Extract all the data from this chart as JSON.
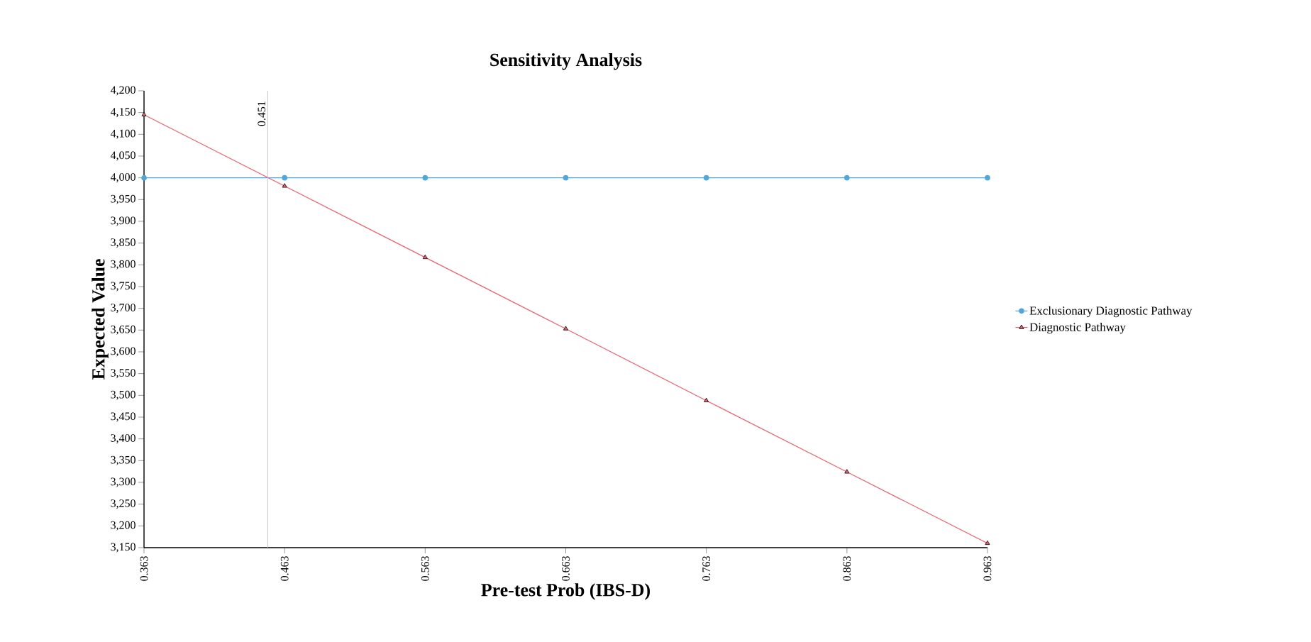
{
  "chart_data": {
    "type": "line",
    "title": "Sensitivity Analysis",
    "xlabel": "Pre-test Prob (IBS-D)",
    "ylabel": "Expected Value",
    "x": [
      0.363,
      0.463,
      0.563,
      0.663,
      0.763,
      0.863,
      0.963
    ],
    "series": [
      {
        "name": "Exclusionary Diagnostic Pathway",
        "color": "#4ea6dc",
        "marker": "circle",
        "values": [
          4000,
          4000,
          4000,
          4000,
          4000,
          4000,
          4000
        ]
      },
      {
        "name": "Diagnostic Pathway",
        "color": "#f0606e",
        "marker": "triangle",
        "values": [
          4145,
          3981,
          3817,
          3653,
          3488,
          3324,
          3160
        ]
      }
    ],
    "xlim": [
      0.363,
      0.963
    ],
    "xticks": [
      0.363,
      0.463,
      0.563,
      0.663,
      0.763,
      0.863,
      0.963
    ],
    "ylim": [
      3150,
      4200
    ],
    "yticks": [
      {
        "value": 3150,
        "label": "3,150"
      },
      {
        "value": 3200,
        "label": "3,200"
      },
      {
        "value": 3250,
        "label": "3,250"
      },
      {
        "value": 3300,
        "label": "3,300"
      },
      {
        "value": 3350,
        "label": "3,350"
      },
      {
        "value": 3400,
        "label": "3,400"
      },
      {
        "value": 3450,
        "label": "3,450"
      },
      {
        "value": 3500,
        "label": "3,500"
      },
      {
        "value": 3550,
        "label": "3,550"
      },
      {
        "value": 3600,
        "label": "3,600"
      },
      {
        "value": 3650,
        "label": "3,650"
      },
      {
        "value": 3700,
        "label": "3,700"
      },
      {
        "value": 3750,
        "label": "3,750"
      },
      {
        "value": 3800,
        "label": "3,800"
      },
      {
        "value": 3850,
        "label": "3,850"
      },
      {
        "value": 3900,
        "label": "3,900"
      },
      {
        "value": 3950,
        "label": "3,950"
      },
      {
        "value": 4000,
        "label": "4,000"
      },
      {
        "value": 4050,
        "label": "4,050"
      },
      {
        "value": 4100,
        "label": "4,100"
      },
      {
        "value": 4150,
        "label": "4,150"
      },
      {
        "value": 4200,
        "label": "4,200"
      }
    ],
    "ref_lines": [
      {
        "axis": "x",
        "value": 0.451,
        "label": "0.451",
        "color": "#c8c8c8"
      }
    ],
    "grid": false,
    "legend": "right",
    "line_style": "solid"
  }
}
